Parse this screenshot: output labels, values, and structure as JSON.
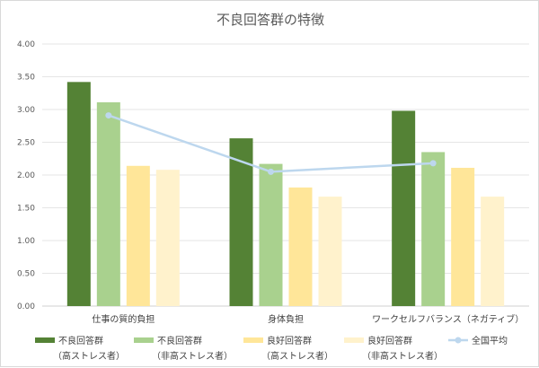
{
  "chart_data": {
    "type": "bar",
    "title": "不良回答群の特徴",
    "categories": [
      "仕事の質的負担",
      "身体負担",
      "ワークセルフバランス（ネガティブ）"
    ],
    "ylim": [
      0,
      4
    ],
    "yticks": [
      "0.00",
      "0.50",
      "1.00",
      "1.50",
      "2.00",
      "2.50",
      "3.00",
      "3.50",
      "4.00"
    ],
    "grid": true,
    "legend_position": "bottom",
    "series": [
      {
        "name": "不良回答群（高ストレス者）",
        "legend_line1": "不良回答群",
        "legend_line2": "（高ストレス者）",
        "type": "bar",
        "color": "#548235",
        "values": [
          3.42,
          2.56,
          2.98
        ]
      },
      {
        "name": "不良回答群（非高ストレス者）",
        "legend_line1": "不良回答群",
        "legend_line2": "（非高ストレス者）",
        "type": "bar",
        "color": "#a9d18e",
        "values": [
          3.11,
          2.17,
          2.35
        ]
      },
      {
        "name": "良好回答群（高ストレス者）",
        "legend_line1": "良好回答群",
        "legend_line2": "（高ストレス者）",
        "type": "bar",
        "color": "#ffe699",
        "values": [
          2.14,
          1.81,
          2.11
        ]
      },
      {
        "name": "良好回答群（非高ストレス者）",
        "legend_line1": "良好回答群",
        "legend_line2": "（非高ストレス者）",
        "type": "bar",
        "color": "#fff2cc",
        "values": [
          2.08,
          1.67,
          1.67
        ]
      },
      {
        "name": "全国平均",
        "legend_line1": "全国平均",
        "legend_line2": "",
        "type": "line",
        "color": "#bdd7ee",
        "values": [
          2.91,
          2.05,
          2.18
        ]
      }
    ]
  }
}
